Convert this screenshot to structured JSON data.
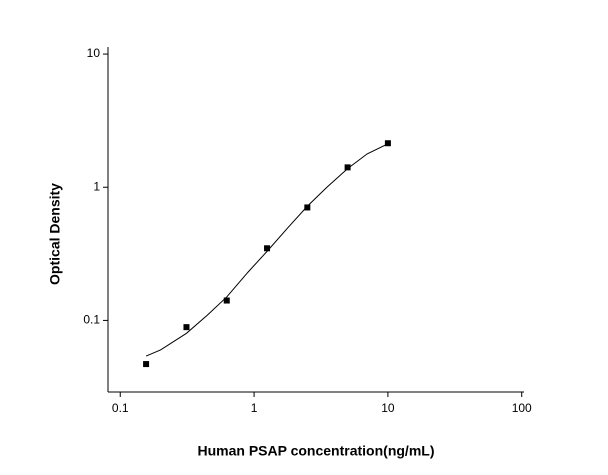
{
  "chart_data": {
    "type": "scatter",
    "xlabel": "Human PSAP concentration(ng/mL)",
    "ylabel": "Optical Density",
    "x": [
      0.156,
      0.3125,
      0.625,
      1.25,
      2.5,
      5,
      10
    ],
    "values": [
      0.047,
      0.089,
      0.141,
      0.348,
      0.705,
      1.41,
      2.14
    ],
    "color": "#000000",
    "curve": {
      "x": [
        0.156,
        0.2,
        0.3125,
        0.45,
        0.625,
        0.9,
        1.25,
        1.8,
        2.5,
        3.5,
        5,
        7,
        10
      ],
      "values": [
        0.054,
        0.06,
        0.08,
        0.11,
        0.15,
        0.23,
        0.33,
        0.5,
        0.72,
        1.0,
        1.38,
        1.78,
        2.12
      ]
    },
    "xlog": true,
    "ylog": true,
    "xlim": [
      0.081,
      104
    ],
    "ylim": [
      0.029,
      11.3
    ],
    "xticks": [
      0.1,
      1,
      10,
      100
    ],
    "yticks": [
      0.1,
      1,
      10
    ]
  }
}
